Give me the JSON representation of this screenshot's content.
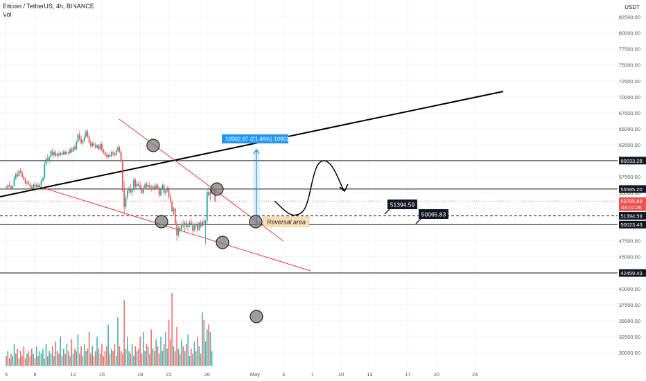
{
  "header": {
    "symbol_line": "Bitcoin / TetherUS, 4h, BINANCE",
    "vol_label": "Vol"
  },
  "price_axis": {
    "currency": "USDT",
    "ticks": [
      "82500.00",
      "80000.00",
      "77500.00",
      "75000.00",
      "72500.00",
      "70000.00",
      "67500.00",
      "65000.00",
      "62500.00",
      "57500.00",
      "55000.00",
      "47500.00",
      "45000.00",
      "40000.00",
      "37500.00",
      "35000.00",
      "32500.00",
      "30000.00"
    ],
    "ylim": [
      28500,
      83000
    ],
    "badges": [
      {
        "text": "60033.28",
        "price": 60033.28,
        "style": "dark"
      },
      {
        "text": "55585.20",
        "price": 55585.2,
        "style": "dark"
      },
      {
        "text": "53705.69",
        "price": 53705.69,
        "style": "red"
      },
      {
        "text": "03:07:26",
        "price": 52750,
        "style": "red"
      },
      {
        "text": "51394.59",
        "price": 51394.59,
        "style": "dark"
      },
      {
        "text": "50023.43",
        "price": 50023.43,
        "style": "dark"
      },
      {
        "text": "42459.43",
        "price": 42459.43,
        "style": "dark"
      }
    ]
  },
  "time_axis": {
    "ticks": [
      {
        "label": "5",
        "i": 0
      },
      {
        "label": "8",
        "i": 18
      },
      {
        "label": "12",
        "i": 42
      },
      {
        "label": "15",
        "i": 60
      },
      {
        "label": "19",
        "i": 84
      },
      {
        "label": "22",
        "i": 102
      },
      {
        "label": "26",
        "i": 126
      },
      {
        "label": "May",
        "i": 156
      },
      {
        "label": "4",
        "i": 174
      },
      {
        "label": "7",
        "i": 192
      },
      {
        "label": "10",
        "i": 210
      },
      {
        "label": "13",
        "i": 228
      },
      {
        "label": "17",
        "i": 252
      },
      {
        "label": "20",
        "i": 270
      },
      {
        "label": "24",
        "i": 294
      }
    ]
  },
  "annotations": {
    "measure_label": "10902.67 (21.46%) 1090267",
    "reversal_label": "Reversal area",
    "callout_1": "51394.59",
    "callout_2": "50065.83"
  },
  "colors": {
    "up": "#26a69a",
    "down": "#ef5350",
    "trend_red": "#e53935",
    "measure_blue": "#2196f3",
    "badge_dark": "#131722",
    "badge_red": "#ef5350",
    "reversal_bg": "#ffe0b2"
  },
  "chart_data": {
    "type": "candlestick",
    "title": "Bitcoin / TetherUS, 4h, BINANCE",
    "xlabel": "",
    "ylabel": "USDT",
    "ylim": [
      28500,
      83000
    ],
    "date_labels": [
      "5",
      "8",
      "12",
      "15",
      "19",
      "22",
      "26",
      "May",
      "4",
      "7",
      "10",
      "13",
      "17",
      "20",
      "24"
    ],
    "candles": [
      [
        55900,
        56000,
        55700,
        55800
      ],
      [
        55800,
        56400,
        55700,
        56200
      ],
      [
        56200,
        56700,
        55900,
        56000
      ],
      [
        56000,
        56200,
        55500,
        55700
      ],
      [
        55700,
        56200,
        55500,
        56100
      ],
      [
        56100,
        57600,
        56000,
        57200
      ],
      [
        57200,
        58200,
        57000,
        57900
      ],
      [
        57900,
        58500,
        57400,
        57600
      ],
      [
        57600,
        58600,
        57500,
        58400
      ],
      [
        58400,
        58900,
        58000,
        58200
      ],
      [
        58200,
        58500,
        57300,
        57500
      ],
      [
        57500,
        57800,
        56900,
        57100
      ],
      [
        57100,
        57400,
        56300,
        56500
      ],
      [
        56500,
        56900,
        56100,
        56600
      ],
      [
        56600,
        57000,
        56200,
        56400
      ],
      [
        56400,
        56600,
        55700,
        55900
      ],
      [
        55900,
        56200,
        55400,
        55700
      ],
      [
        55700,
        56500,
        55600,
        56300
      ],
      [
        56300,
        56800,
        55700,
        55900
      ],
      [
        55900,
        56500,
        55500,
        56200
      ],
      [
        56200,
        56700,
        55800,
        56000
      ],
      [
        56000,
        56400,
        55600,
        56200
      ],
      [
        56200,
        57200,
        56000,
        56900
      ],
      [
        56900,
        57500,
        56700,
        57300
      ],
      [
        57300,
        59900,
        57100,
        59500
      ],
      [
        59500,
        60700,
        59200,
        60300
      ],
      [
        60300,
        61100,
        59800,
        60000
      ],
      [
        60000,
        60800,
        59600,
        60600
      ],
      [
        60600,
        61800,
        60400,
        61500
      ],
      [
        61500,
        61900,
        60700,
        60900
      ],
      [
        60900,
        61600,
        60500,
        61300
      ],
      [
        61300,
        61700,
        60600,
        60800
      ],
      [
        60800,
        61300,
        60400,
        61100
      ],
      [
        61100,
        61500,
        60600,
        60900
      ],
      [
        60900,
        61400,
        60700,
        61200
      ],
      [
        61200,
        61600,
        60800,
        61000
      ],
      [
        61000,
        61700,
        60900,
        61400
      ],
      [
        61400,
        61700,
        60900,
        61100
      ],
      [
        61100,
        61500,
        60800,
        61300
      ],
      [
        61300,
        61600,
        60900,
        61200
      ],
      [
        61200,
        62100,
        61000,
        61800
      ],
      [
        61800,
        62200,
        61200,
        61400
      ],
      [
        61400,
        62400,
        61300,
        62100
      ],
      [
        62100,
        62500,
        61600,
        61800
      ],
      [
        61800,
        63200,
        61700,
        62900
      ],
      [
        62900,
        64400,
        62700,
        64100
      ],
      [
        64100,
        64700,
        63100,
        63400
      ],
      [
        63400,
        63900,
        62600,
        62800
      ],
      [
        62800,
        63400,
        62400,
        63100
      ],
      [
        63100,
        64100,
        62900,
        63800
      ],
      [
        63800,
        64900,
        63600,
        64600
      ],
      [
        64600,
        64900,
        63600,
        63800
      ],
      [
        63800,
        64100,
        62700,
        62900
      ],
      [
        62900,
        63300,
        62000,
        62300
      ],
      [
        62300,
        63000,
        62100,
        62700
      ],
      [
        62700,
        63100,
        62200,
        62500
      ],
      [
        62500,
        62900,
        61900,
        62100
      ],
      [
        62100,
        62600,
        61900,
        62400
      ],
      [
        62400,
        62600,
        61600,
        61800
      ],
      [
        61800,
        62900,
        61700,
        62600
      ],
      [
        62600,
        63000,
        61400,
        61600
      ],
      [
        61600,
        61900,
        61000,
        61300
      ],
      [
        61300,
        61600,
        60700,
        60900
      ],
      [
        60900,
        61400,
        60300,
        60600
      ],
      [
        60600,
        61100,
        60400,
        60900
      ],
      [
        60900,
        61400,
        60500,
        60700
      ],
      [
        60700,
        61600,
        60500,
        61300
      ],
      [
        61300,
        61600,
        60800,
        61100
      ],
      [
        61100,
        61400,
        60600,
        60900
      ],
      [
        60900,
        61800,
        60800,
        61600
      ],
      [
        61600,
        62300,
        61400,
        62100
      ],
      [
        62100,
        62400,
        61200,
        61400
      ],
      [
        61400,
        61600,
        59700,
        59900
      ],
      [
        59900,
        60300,
        55100,
        55400
      ],
      [
        55400,
        56900,
        51600,
        52800
      ],
      [
        52800,
        54700,
        52400,
        54200
      ],
      [
        54200,
        55700,
        53900,
        55300
      ],
      [
        55300,
        56100,
        54800,
        55600
      ],
      [
        55600,
        56400,
        54900,
        55100
      ],
      [
        55100,
        55700,
        54500,
        55400
      ],
      [
        55400,
        57400,
        55200,
        57000
      ],
      [
        57000,
        57300,
        55700,
        56000
      ],
      [
        56000,
        56700,
        55600,
        56400
      ],
      [
        56400,
        56900,
        55900,
        56100
      ],
      [
        56100,
        56700,
        55400,
        55700
      ],
      [
        55700,
        56200,
        54800,
        55000
      ],
      [
        55000,
        56100,
        54700,
        55800
      ],
      [
        55800,
        56600,
        55500,
        56300
      ],
      [
        56300,
        56700,
        55700,
        55900
      ],
      [
        55900,
        56600,
        55400,
        56200
      ],
      [
        56200,
        56700,
        55600,
        55800
      ],
      [
        55800,
        56200,
        55200,
        55500
      ],
      [
        55500,
        56200,
        55400,
        56000
      ],
      [
        56000,
        56500,
        55300,
        55600
      ],
      [
        55600,
        56500,
        55500,
        56200
      ],
      [
        56200,
        56400,
        55600,
        55800
      ],
      [
        55800,
        56000,
        54300,
        54600
      ],
      [
        54600,
        55900,
        54400,
        55600
      ],
      [
        55600,
        56500,
        55400,
        56200
      ],
      [
        56200,
        56400,
        54700,
        55000
      ],
      [
        55000,
        55600,
        54500,
        55300
      ],
      [
        55300,
        56100,
        55100,
        55800
      ],
      [
        55800,
        55900,
        54100,
        54400
      ],
      [
        54400,
        54900,
        53300,
        53600
      ],
      [
        53600,
        53800,
        51800,
        52100
      ],
      [
        52100,
        52800,
        51400,
        52500
      ],
      [
        52500,
        52700,
        49900,
        50200
      ],
      [
        50200,
        50800,
        47500,
        48400
      ],
      [
        48400,
        49800,
        48100,
        49500
      ],
      [
        49500,
        50200,
        48800,
        49200
      ],
      [
        49200,
        50500,
        49000,
        50100
      ],
      [
        50100,
        50700,
        49500,
        49900
      ],
      [
        49900,
        50600,
        48900,
        50300
      ],
      [
        50300,
        50800,
        49200,
        49600
      ],
      [
        49600,
        50300,
        49000,
        49900
      ],
      [
        49900,
        50700,
        49600,
        50400
      ],
      [
        50400,
        51000,
        49700,
        50100
      ],
      [
        50100,
        50500,
        48700,
        49100
      ],
      [
        49100,
        50200,
        48900,
        49800
      ],
      [
        49800,
        50400,
        49300,
        50000
      ],
      [
        50000,
        50500,
        48800,
        49200
      ],
      [
        49200,
        50500,
        49000,
        50300
      ],
      [
        50300,
        50700,
        49500,
        49800
      ],
      [
        49800,
        50800,
        49600,
        50500
      ],
      [
        50500,
        51000,
        49900,
        50200
      ],
      [
        50200,
        50800,
        46900,
        50600
      ],
      [
        50600,
        55600,
        50200,
        55100
      ],
      [
        55100,
        55900,
        54300,
        54600
      ],
      [
        54600,
        55600,
        53800,
        55200
      ],
      [
        55200,
        56100,
        54900,
        55700
      ],
      [
        55700,
        56000,
        54900,
        55300
      ],
      [
        55300,
        55400,
        53500,
        53706
      ]
    ],
    "volume_scale": "relative",
    "volume": [
      4,
      6,
      3,
      5,
      4,
      9,
      5,
      7,
      3,
      6,
      4,
      8,
      3,
      5,
      6,
      4,
      7,
      5,
      3,
      8,
      4,
      6,
      5,
      7,
      3,
      9,
      4,
      6,
      5,
      8,
      4,
      10,
      6,
      5,
      12,
      4,
      7,
      5,
      9,
      6,
      4,
      11,
      5,
      7,
      6,
      13,
      5,
      8,
      4,
      9,
      6,
      7,
      14,
      5,
      8,
      4,
      6,
      12,
      7,
      5,
      9,
      4,
      6,
      8,
      17,
      5,
      7,
      6,
      9,
      4,
      20,
      8,
      6,
      5,
      27,
      7,
      12,
      6,
      5,
      9,
      4,
      8,
      6,
      7,
      12,
      5,
      14,
      6,
      9,
      8,
      5,
      15,
      7,
      6,
      11,
      8,
      5,
      12,
      6,
      9,
      14,
      7,
      19,
      11,
      30,
      8,
      6,
      16,
      7,
      5,
      11,
      8,
      6,
      9,
      13,
      4,
      7,
      5,
      10,
      6,
      12,
      8,
      5,
      22,
      19,
      10,
      15,
      17,
      14,
      6
    ]
  }
}
